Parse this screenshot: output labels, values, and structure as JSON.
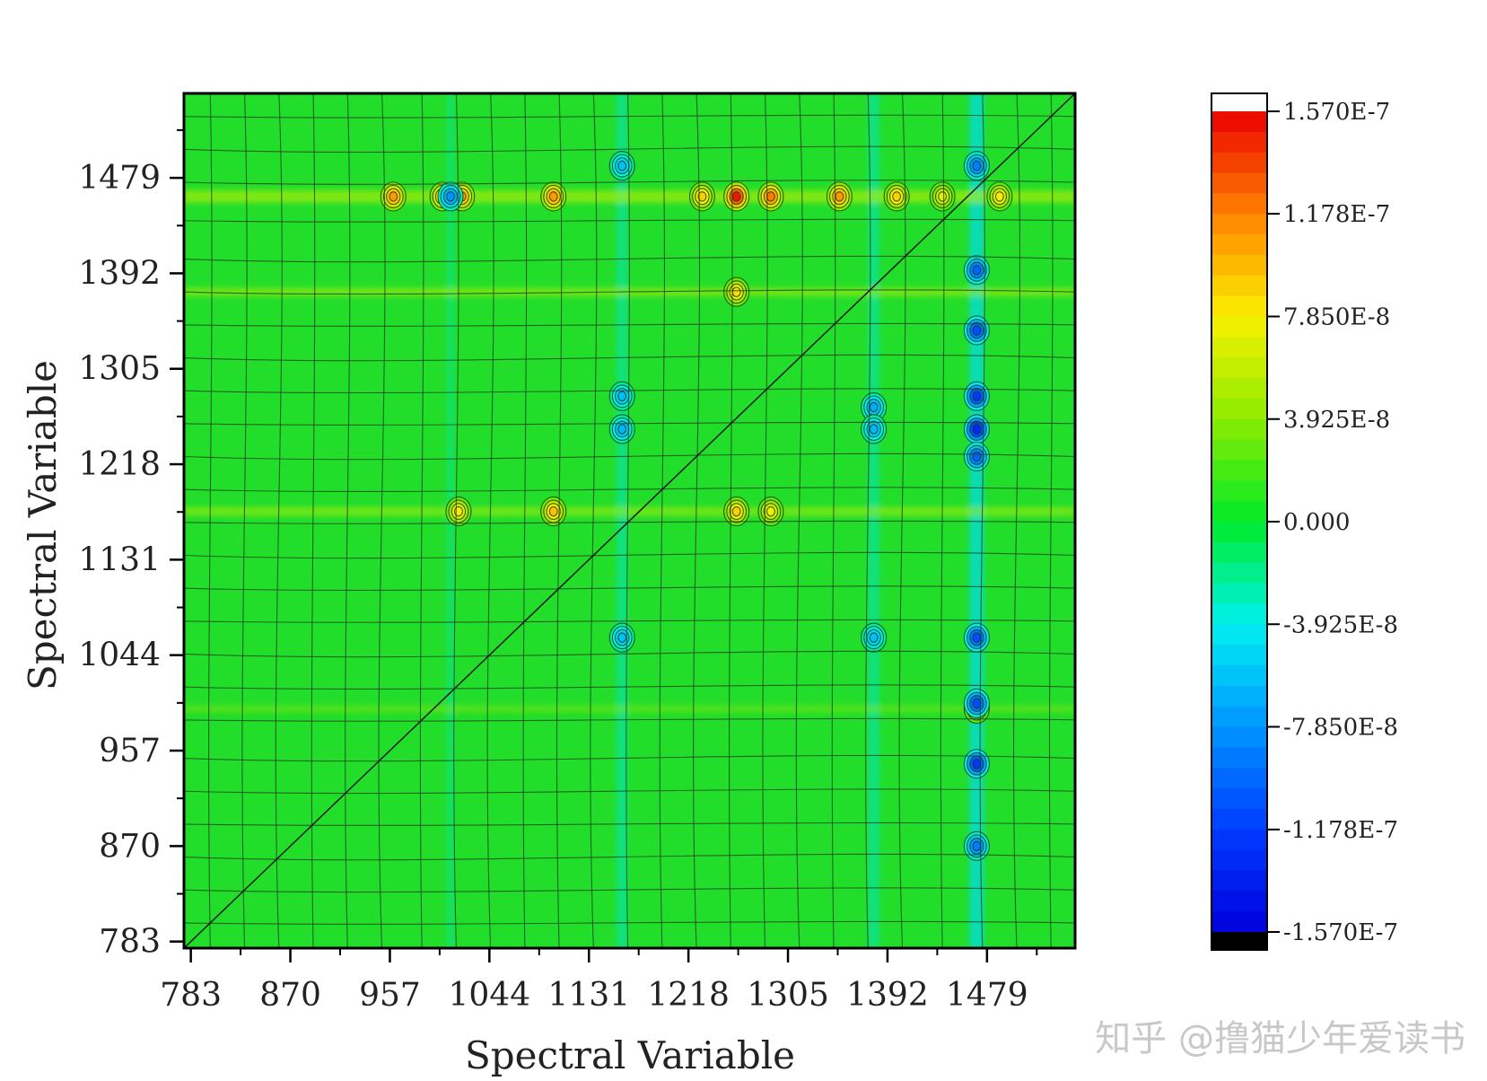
{
  "chart_data": {
    "type": "heatmap",
    "title": "",
    "xlabel": "Spectral Variable",
    "ylabel": "Spectral Variable",
    "x_ticks": [
      "783",
      "870",
      "957",
      "1044",
      "1131",
      "1218",
      "1305",
      "1392",
      "1479"
    ],
    "y_ticks": [
      "783",
      "870",
      "957",
      "1044",
      "1131",
      "1218",
      "1305",
      "1392",
      "1479"
    ],
    "xlim": [
      777,
      1556
    ],
    "ylim": [
      777,
      1556
    ],
    "colorbar": {
      "min": -1.57e-07,
      "max": 1.57e-07,
      "labels": [
        "1.570E-7",
        "1.178E-7",
        "7.850E-8",
        "3.925E-8",
        "0.000",
        "-3.925E-8",
        "-7.850E-8",
        "-1.178E-7",
        "-1.570E-7"
      ],
      "label_values": [
        1.57e-07,
        1.178e-07,
        7.85e-08,
        3.925e-08,
        0,
        -3.925e-08,
        -7.85e-08,
        -1.178e-07,
        -1.57e-07
      ],
      "over_color": "#ffffff",
      "under_color": "#000000"
    },
    "features": {
      "positive_peaks": [
        {
          "x": 1260,
          "y": 1462,
          "value": 1.5e-07
        },
        {
          "x": 1290,
          "y": 1462,
          "value": 1.2e-07
        },
        {
          "x": 1230,
          "y": 1462,
          "value": 9e-08
        },
        {
          "x": 1350,
          "y": 1462,
          "value": 1.1e-07
        },
        {
          "x": 1100,
          "y": 1462,
          "value": 1.1e-07
        },
        {
          "x": 1020,
          "y": 1462,
          "value": 1.1e-07
        },
        {
          "x": 1003,
          "y": 1462,
          "value": 1e-07
        },
        {
          "x": 960,
          "y": 1462,
          "value": 1.1e-07
        },
        {
          "x": 1400,
          "y": 1462,
          "value": 9e-08
        },
        {
          "x": 1440,
          "y": 1462,
          "value": 7e-08
        },
        {
          "x": 1490,
          "y": 1462,
          "value": 8e-08
        },
        {
          "x": 1260,
          "y": 1375,
          "value": 8.5e-08
        },
        {
          "x": 1260,
          "y": 1175,
          "value": 9e-08
        },
        {
          "x": 1290,
          "y": 1175,
          "value": 7.5e-08
        },
        {
          "x": 1100,
          "y": 1175,
          "value": 9.5e-08
        },
        {
          "x": 1017,
          "y": 1175,
          "value": 8e-08
        },
        {
          "x": 1470,
          "y": 995,
          "value": 7e-08
        }
      ],
      "negative_peaks": [
        {
          "x": 1470,
          "y": 1490,
          "value": -9e-08
        },
        {
          "x": 1470,
          "y": 1395,
          "value": -1e-07
        },
        {
          "x": 1470,
          "y": 1340,
          "value": -1.1e-07
        },
        {
          "x": 1470,
          "y": 1280,
          "value": -1.2e-07
        },
        {
          "x": 1470,
          "y": 1250,
          "value": -1.3e-07
        },
        {
          "x": 1470,
          "y": 1225,
          "value": -1e-07
        },
        {
          "x": 1470,
          "y": 1060,
          "value": -1.1e-07
        },
        {
          "x": 1470,
          "y": 1000,
          "value": -1.1e-07
        },
        {
          "x": 1470,
          "y": 945,
          "value": -1.2e-07
        },
        {
          "x": 1470,
          "y": 870,
          "value": -9e-08
        },
        {
          "x": 1010,
          "y": 1462,
          "value": -8e-08
        },
        {
          "x": 1160,
          "y": 1490,
          "value": -6e-08
        },
        {
          "x": 1380,
          "y": 1270,
          "value": -7e-08
        },
        {
          "x": 1380,
          "y": 1250,
          "value": -6.5e-08
        },
        {
          "x": 1160,
          "y": 1250,
          "value": -6.5e-08
        },
        {
          "x": 1160,
          "y": 1280,
          "value": -6e-08
        },
        {
          "x": 1380,
          "y": 1060,
          "value": -6e-08
        },
        {
          "x": 1160,
          "y": 1060,
          "value": -6e-08
        }
      ]
    }
  },
  "watermark": "知乎 @撸猫少年爱读书"
}
